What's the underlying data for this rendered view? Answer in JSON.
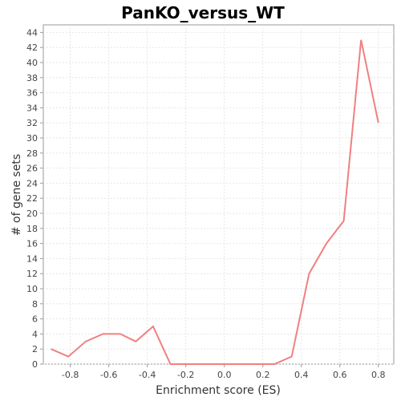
{
  "chart_data": {
    "type": "line",
    "title": "PanKO_versus_WT",
    "xlabel": "Enrichment score (ES)",
    "ylabel": "# of gene sets",
    "xlim": [
      -0.94,
      0.88
    ],
    "ylim": [
      0,
      45
    ],
    "x_ticks": [
      -0.8,
      -0.6,
      -0.4,
      -0.2,
      0.0,
      0.2,
      0.4,
      0.6,
      0.8
    ],
    "x_tick_labels": [
      "-0.8",
      "-0.6",
      "-0.4",
      "-0.2",
      "0.0",
      "0.2",
      "0.4",
      "0.6",
      "0.8"
    ],
    "y_ticks": [
      0,
      2,
      4,
      6,
      8,
      10,
      12,
      14,
      16,
      18,
      20,
      22,
      24,
      26,
      28,
      30,
      32,
      34,
      36,
      38,
      40,
      42,
      44
    ],
    "grid": true,
    "legend": "none",
    "colors": {
      "line": "#f08080"
    },
    "series": [
      {
        "x": [
          -0.9,
          -0.81,
          -0.72,
          -0.63,
          -0.54,
          -0.46,
          -0.37,
          -0.28,
          -0.19,
          -0.1,
          -0.02,
          0.07,
          0.16,
          0.26,
          0.35,
          0.44,
          0.53,
          0.62,
          0.71,
          0.8
        ],
        "y": [
          2,
          1,
          3,
          4,
          4,
          3,
          5,
          0,
          0,
          0,
          0,
          0,
          0,
          0,
          1,
          12,
          16,
          19,
          43,
          32
        ]
      }
    ]
  }
}
